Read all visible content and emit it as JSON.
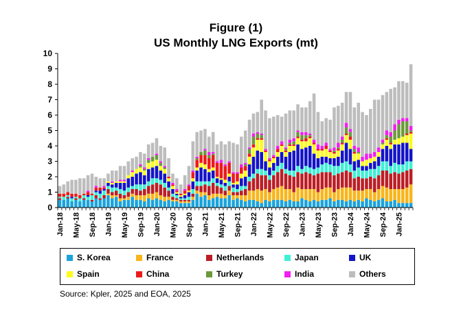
{
  "figure": {
    "title_line1": "Figure (1)",
    "title_line2": "US Monthly LNG Exports (mt)",
    "source": "Source: Kpler, 2025 and EOA, 2025"
  },
  "colors": {
    "S. Korea": "#1ba3dc",
    "France": "#f8b51b",
    "Netherlands": "#bc1e25",
    "Japan": "#3ff0d5",
    "UK": "#1414c8",
    "Spain": "#fcfc1c",
    "China": "#ec1a1a",
    "Turkey": "#6c9a3a",
    "India": "#f21ef2",
    "Others": "#bdbdbd"
  },
  "chart_data": {
    "type": "bar",
    "stacked": true,
    "xlabel": "",
    "ylabel": "",
    "ylim": [
      0,
      10
    ],
    "yticks": [
      0,
      1,
      2,
      3,
      4,
      5,
      6,
      7,
      8,
      9,
      10
    ],
    "xtick_labels": [
      "Jan-18",
      "May-18",
      "Sep-18",
      "Jan-19",
      "May-19",
      "Sep-19",
      "Jan-20",
      "May-20",
      "Sep-20",
      "Jan-21",
      "May-21",
      "Sep-21",
      "Jan-22",
      "May-22",
      "Sep-22",
      "Jan-23",
      "May-23",
      "Sep-23",
      "Jan-24",
      "May-24",
      "Sep-24",
      "Jan-25"
    ],
    "legend_position": "bottom",
    "grid": false,
    "categories": [
      "Jan-18",
      "Feb-18",
      "Mar-18",
      "Apr-18",
      "May-18",
      "Jun-18",
      "Jul-18",
      "Aug-18",
      "Sep-18",
      "Oct-18",
      "Nov-18",
      "Dec-18",
      "Jan-19",
      "Feb-19",
      "Mar-19",
      "Apr-19",
      "May-19",
      "Jun-19",
      "Jul-19",
      "Aug-19",
      "Sep-19",
      "Oct-19",
      "Nov-19",
      "Dec-19",
      "Jan-20",
      "Feb-20",
      "Mar-20",
      "Apr-20",
      "May-20",
      "Jun-20",
      "Jul-20",
      "Aug-20",
      "Sep-20",
      "Oct-20",
      "Nov-20",
      "Dec-20",
      "Jan-21",
      "Feb-21",
      "Mar-21",
      "Apr-21",
      "May-21",
      "Jun-21",
      "Jul-21",
      "Aug-21",
      "Sep-21",
      "Oct-21",
      "Nov-21",
      "Dec-21",
      "Jan-22",
      "Feb-22",
      "Mar-22",
      "Apr-22",
      "May-22",
      "Jun-22",
      "Jul-22",
      "Aug-22",
      "Sep-22",
      "Oct-22",
      "Nov-22",
      "Dec-22",
      "Jan-23",
      "Feb-23",
      "Mar-23",
      "Apr-23",
      "May-23",
      "Jun-23",
      "Jul-23",
      "Aug-23",
      "Sep-23",
      "Oct-23",
      "Nov-23",
      "Dec-23",
      "Jan-24",
      "Feb-24",
      "Mar-24",
      "Apr-24",
      "May-24",
      "Jun-24",
      "Jul-24",
      "Aug-24",
      "Sep-24",
      "Oct-24",
      "Nov-24",
      "Dec-24",
      "Jan-25",
      "Feb-25",
      "Mar-25",
      "Apr-25"
    ],
    "series": [
      {
        "name": "S. Korea",
        "values": [
          0.5,
          0.5,
          0.6,
          0.4,
          0.5,
          0.4,
          0.5,
          0.5,
          0.4,
          0.6,
          0.5,
          0.6,
          0.8,
          0.6,
          0.7,
          0.4,
          0.5,
          0.5,
          0.7,
          0.5,
          0.5,
          0.4,
          0.6,
          0.5,
          0.6,
          0.5,
          0.4,
          0.5,
          0.4,
          0.4,
          0.3,
          0.3,
          0.3,
          0.5,
          0.9,
          0.7,
          0.8,
          0.5,
          0.6,
          0.7,
          0.6,
          0.6,
          0.8,
          0.5,
          0.6,
          0.5,
          0.4,
          0.5,
          0.5,
          0.4,
          0.3,
          0.5,
          0.4,
          0.5,
          0.5,
          0.5,
          0.4,
          0.5,
          0.4,
          0.4,
          0.6,
          0.5,
          0.4,
          0.5,
          0.4,
          0.5,
          0.5,
          0.6,
          0.4,
          0.5,
          0.5,
          0.4,
          0.5,
          0.4,
          0.5,
          0.4,
          0.6,
          0.5,
          0.4,
          0.5,
          0.6,
          0.4,
          0.4,
          0.5,
          0.3,
          0.3,
          0.3,
          0.3
        ]
      },
      {
        "name": "France",
        "values": [
          0,
          0,
          0,
          0,
          0,
          0,
          0,
          0,
          0,
          0,
          0,
          0,
          0.1,
          0.2,
          0.1,
          0.2,
          0.1,
          0.2,
          0.2,
          0.3,
          0.3,
          0.4,
          0.3,
          0.4,
          0.4,
          0.3,
          0.3,
          0.2,
          0.1,
          0.1,
          0.1,
          0.1,
          0.1,
          0.2,
          0.2,
          0.3,
          0.2,
          0.3,
          0.3,
          0.2,
          0.3,
          0.2,
          0.3,
          0.3,
          0.2,
          0.3,
          0.4,
          0.6,
          0.6,
          0.8,
          0.8,
          0.7,
          0.6,
          0.7,
          0.8,
          0.9,
          0.8,
          0.7,
          0.6,
          0.9,
          0.6,
          0.7,
          0.8,
          0.7,
          0.6,
          0.7,
          0.8,
          0.7,
          0.6,
          0.7,
          0.8,
          0.9,
          0.8,
          0.7,
          0.6,
          0.7,
          0.6,
          0.7,
          0.6,
          0.7,
          0.8,
          0.9,
          0.8,
          0.7,
          0.9,
          0.9,
          1.0,
          1.2
        ]
      },
      {
        "name": "Netherlands",
        "values": [
          0.1,
          0,
          0.1,
          0,
          0.1,
          0,
          0.1,
          0,
          0.1,
          0.2,
          0.1,
          0.2,
          0.3,
          0.2,
          0.3,
          0.3,
          0.2,
          0.3,
          0.3,
          0.4,
          0.3,
          0.4,
          0.5,
          0.6,
          0.6,
          0.7,
          0.6,
          0.4,
          0.2,
          0.1,
          0.1,
          0.1,
          0.1,
          0.2,
          0.3,
          0.4,
          0.5,
          0.6,
          0.7,
          0.5,
          0.4,
          0.3,
          0.3,
          0.2,
          0.2,
          0.3,
          0.4,
          0.6,
          0.8,
          1.0,
          1.0,
          0.9,
          0.8,
          0.9,
          1.0,
          1.1,
          1.0,
          0.9,
          1.0,
          1.0,
          1.0,
          1.1,
          1.0,
          0.9,
          1.2,
          1.1,
          1.0,
          1.0,
          1.1,
          1.0,
          1.0,
          1.1,
          1.0,
          0.8,
          0.9,
          0.8,
          0.7,
          0.8,
          0.9,
          0.9,
          1.0,
          1.1,
          1.0,
          1.1,
          1.0,
          1.1,
          1.1,
          1.0
        ]
      },
      {
        "name": "Japan",
        "values": [
          0.1,
          0.2,
          0.1,
          0.2,
          0.1,
          0.2,
          0.2,
          0.2,
          0.3,
          0.2,
          0.3,
          0.3,
          0.2,
          0.3,
          0.2,
          0.3,
          0.3,
          0.3,
          0.2,
          0.3,
          0.4,
          0.3,
          0.3,
          0.4,
          0.3,
          0.3,
          0.3,
          0.2,
          0.2,
          0.2,
          0.1,
          0.1,
          0.2,
          0.3,
          0.3,
          0.3,
          0.2,
          0.3,
          0.3,
          0.2,
          0.2,
          0.3,
          0.3,
          0.3,
          0.2,
          0.3,
          0.2,
          0.3,
          0.3,
          0.3,
          0.4,
          0.3,
          0.3,
          0.3,
          0.4,
          0.4,
          0.3,
          0.3,
          0.4,
          0.4,
          0.3,
          0.4,
          0.4,
          0.4,
          0.4,
          0.5,
          0.6,
          0.5,
          0.6,
          0.5,
          0.6,
          0.6,
          0.5,
          0.5,
          0.6,
          0.5,
          0.5,
          0.5,
          0.6,
          0.6,
          0.6,
          0.6,
          0.5,
          0.6,
          0.6,
          0.5,
          0.6,
          0.5
        ]
      },
      {
        "name": "UK",
        "values": [
          0,
          0,
          0,
          0.1,
          0,
          0,
          0,
          0.1,
          0,
          0.1,
          0.2,
          0.1,
          0.2,
          0.2,
          0.3,
          0.4,
          0.5,
          0.6,
          0.6,
          0.7,
          0.8,
          0.6,
          0.8,
          0.7,
          0.8,
          0.6,
          0.6,
          0.4,
          0.3,
          0.1,
          0.1,
          0.2,
          0.3,
          0.5,
          0.7,
          0.9,
          0.8,
          0.6,
          0.5,
          0.3,
          0.3,
          0.2,
          0.3,
          0.2,
          0.3,
          0.5,
          0.6,
          0.8,
          1.1,
          1.2,
          1.1,
          0.6,
          0.5,
          0.5,
          0.6,
          0.7,
          0.8,
          1.2,
          1.3,
          1.4,
          1.3,
          1.2,
          1.4,
          1.0,
          0.6,
          0.5,
          0.4,
          0.4,
          0.5,
          0.6,
          0.8,
          1.2,
          1.0,
          0.6,
          0.5,
          0.3,
          0.3,
          0.4,
          0.5,
          0.6,
          0.8,
          1.0,
          1.1,
          1.2,
          1.3,
          1.4,
          1.2,
          0.8
        ]
      },
      {
        "name": "Spain",
        "values": [
          0,
          0,
          0,
          0,
          0,
          0,
          0,
          0,
          0,
          0,
          0,
          0,
          0.1,
          0.1,
          0.1,
          0.1,
          0.1,
          0.2,
          0.3,
          0.3,
          0.3,
          0.3,
          0.4,
          0.4,
          0.4,
          0.3,
          0.3,
          0.2,
          0.2,
          0.1,
          0.1,
          0.1,
          0.1,
          0.2,
          0.2,
          0.3,
          0.3,
          0.2,
          0.2,
          0.1,
          0.1,
          0.2,
          0.2,
          0.1,
          0.2,
          0.3,
          0.4,
          0.5,
          0.6,
          0.7,
          0.8,
          0.6,
          0.4,
          0.3,
          0.3,
          0.4,
          0.3,
          0.4,
          0.3,
          0.4,
          0.5,
          0.4,
          0.5,
          0.6,
          0.5,
          0.4,
          0.5,
          0.4,
          0.3,
          0.4,
          0.4,
          0.5,
          0.6,
          0.5,
          0.4,
          0.3,
          0.4,
          0.3,
          0.3,
          0.3,
          0.3,
          0.4,
          0.3,
          0.3,
          0.4,
          0.4,
          0.5,
          1.0
        ]
      },
      {
        "name": "China",
        "values": [
          0.2,
          0.2,
          0.2,
          0.2,
          0.2,
          0.2,
          0.1,
          0.2,
          0.1,
          0.2,
          0.2,
          0.1,
          0,
          0,
          0,
          0,
          0,
          0,
          0,
          0,
          0,
          0,
          0,
          0,
          0,
          0,
          0,
          0.1,
          0.1,
          0.1,
          0.1,
          0.2,
          0.3,
          0.4,
          0.5,
          0.5,
          0.6,
          0.7,
          0.8,
          0.9,
          1.0,
          0.9,
          0.7,
          0.6,
          0.5,
          0.4,
          0.3,
          0.2,
          0.2,
          0.1,
          0.1,
          0.1,
          0.1,
          0.1,
          0.2,
          0.1,
          0.1,
          0.1,
          0.1,
          0.1,
          0.1,
          0.2,
          0.1,
          0.1,
          0.1,
          0.1,
          0.2,
          0.1,
          0.1,
          0.1,
          0.1,
          0.1,
          0.2,
          0.1,
          0,
          0,
          0,
          0,
          0,
          0,
          0,
          0.1,
          0.1,
          0,
          0,
          0,
          0.1,
          0.1
        ]
      },
      {
        "name": "Turkey",
        "values": [
          0,
          0,
          0,
          0,
          0,
          0,
          0,
          0,
          0,
          0,
          0,
          0,
          0,
          0,
          0,
          0,
          0,
          0,
          0,
          0,
          0.1,
          0.1,
          0.2,
          0.3,
          0.3,
          0.2,
          0.1,
          0,
          0,
          0,
          0,
          0,
          0,
          0,
          0.1,
          0.2,
          0.3,
          0.2,
          0.1,
          0,
          0,
          0,
          0,
          0,
          0,
          0,
          0.1,
          0.3,
          0.5,
          0.3,
          0.2,
          0,
          0,
          0,
          0,
          0,
          0.1,
          0.1,
          0.2,
          0.3,
          0.3,
          0.2,
          0.1,
          0,
          0,
          0,
          0,
          0,
          0.1,
          0.1,
          0.2,
          0.4,
          0.3,
          0.2,
          0.1,
          0,
          0,
          0,
          0,
          0,
          0.1,
          0.2,
          0.4,
          0.6,
          0.9,
          1.0,
          0.8,
          0.1
        ]
      },
      {
        "name": "India",
        "values": [
          0,
          0,
          0,
          0,
          0,
          0,
          0,
          0.1,
          0,
          0.1,
          0,
          0.1,
          0,
          0.1,
          0,
          0.1,
          0.1,
          0,
          0.1,
          0,
          0.1,
          0.1,
          0.1,
          0,
          0.1,
          0.1,
          0.1,
          0,
          0.1,
          0.1,
          0,
          0.1,
          0.1,
          0.1,
          0.1,
          0,
          0.1,
          0.2,
          0.1,
          0.1,
          0.2,
          0.1,
          0.1,
          0.1,
          0.1,
          0.2,
          0.1,
          0.1,
          0.2,
          0.1,
          0.1,
          0.1,
          0.1,
          0.1,
          0.2,
          0.2,
          0.1,
          0.2,
          0.2,
          0.1,
          0.2,
          0.2,
          0.1,
          0.2,
          0.3,
          0.2,
          0.2,
          0.1,
          0.2,
          0.3,
          0.2,
          0.3,
          0.2,
          0.2,
          0.3,
          0.3,
          0.4,
          0.3,
          0.3,
          0.3,
          0.2,
          0.3,
          0.3,
          0.4,
          0.3,
          0.2,
          0.2,
          0.3
        ]
      },
      {
        "name": "Others",
        "values": [
          0.5,
          0.6,
          0.7,
          0.9,
          0.9,
          1.1,
          1.0,
          1.0,
          1.3,
          0.6,
          0.6,
          0.5,
          0.5,
          0.7,
          0.7,
          0.9,
          0.9,
          0.9,
          0.8,
          0.8,
          0.8,
          0.9,
          0.9,
          0.9,
          1.0,
          1.0,
          1.2,
          1.2,
          0.6,
          0.7,
          0.6,
          0.9,
          1.2,
          1.9,
          1.6,
          1.4,
          1.3,
          1.0,
          1.3,
          1.1,
          1.2,
          1.3,
          1.3,
          1.9,
          1.8,
          1.8,
          2.1,
          1.8,
          1.3,
          1.3,
          2.2,
          2.5,
          2.6,
          2.5,
          2.0,
          1.6,
          2.2,
          1.9,
          1.8,
          1.7,
          1.6,
          1.6,
          2.1,
          3.0,
          2.1,
          1.6,
          1.6,
          1.9,
          2.6,
          2.4,
          2.2,
          2.0,
          2.4,
          2.5,
          2.9,
          2.9,
          2.5,
          2.9,
          3.4,
          3.1,
          2.9,
          2.5,
          2.8,
          2.4,
          2.5,
          2.4,
          2.3,
          4.0
        ]
      }
    ]
  }
}
